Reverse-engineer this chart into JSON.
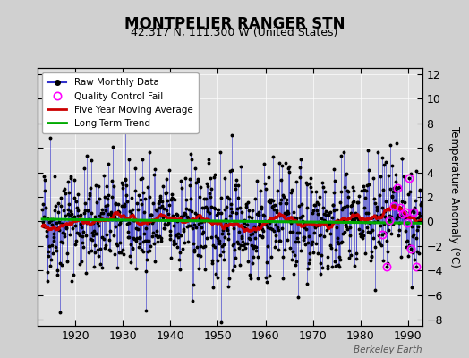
{
  "title": "MONTPELIER RANGER STN",
  "subtitle": "42.317 N, 111.300 W (United States)",
  "ylabel": "Temperature Anomaly (°C)",
  "watermark": "Berkeley Earth",
  "xlim": [
    1912,
    1993
  ],
  "ylim": [
    -8.5,
    12.5
  ],
  "yticks": [
    -8,
    -6,
    -4,
    -2,
    0,
    2,
    4,
    6,
    8,
    10,
    12
  ],
  "xticks": [
    1920,
    1930,
    1940,
    1950,
    1960,
    1970,
    1980,
    1990
  ],
  "background_color": "#d0d0d0",
  "plot_bg_color": "#e0e0e0",
  "raw_color": "#3333cc",
  "dot_color": "#000000",
  "qc_color": "#ff00ff",
  "moving_avg_color": "#cc0000",
  "trend_color": "#00aa00",
  "seed": 42,
  "start_year": 1913,
  "end_year": 1992
}
